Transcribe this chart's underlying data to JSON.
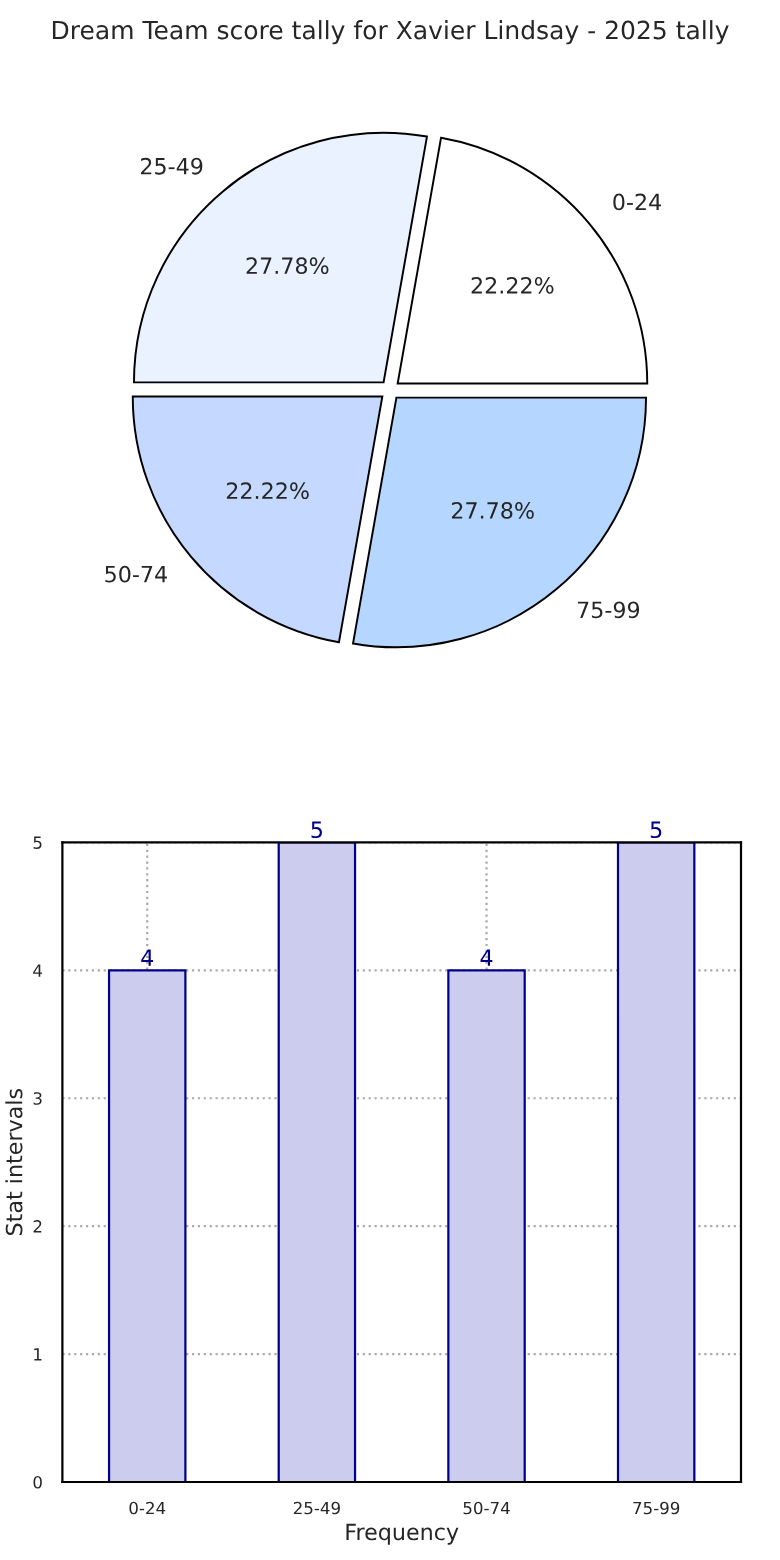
{
  "chart_data": [
    {
      "type": "pie",
      "title": "Dream Team score tally for Xavier Lindsay - 2025 tally",
      "categories": [
        "0-24",
        "25-49",
        "50-74",
        "75-99"
      ],
      "values": [
        22.22,
        27.78,
        22.22,
        27.78
      ],
      "value_labels": [
        "22.22%",
        "27.78%",
        "22.22%",
        "27.78%"
      ],
      "colors": [
        "#ffffff",
        "#eaf1ff",
        "#c5d8ff",
        "#b4d6ff"
      ]
    },
    {
      "type": "bar",
      "categories": [
        "0-24",
        "25-49",
        "50-74",
        "75-99"
      ],
      "values": [
        4,
        5,
        4,
        5
      ],
      "color": "#ccccee",
      "xlabel": "Frequency",
      "ylabel": "Stat intervals",
      "ylim": [
        0,
        5
      ],
      "yticks": [
        0,
        1,
        2,
        3,
        4,
        5
      ],
      "grid": true,
      "data_labels": true
    }
  ]
}
